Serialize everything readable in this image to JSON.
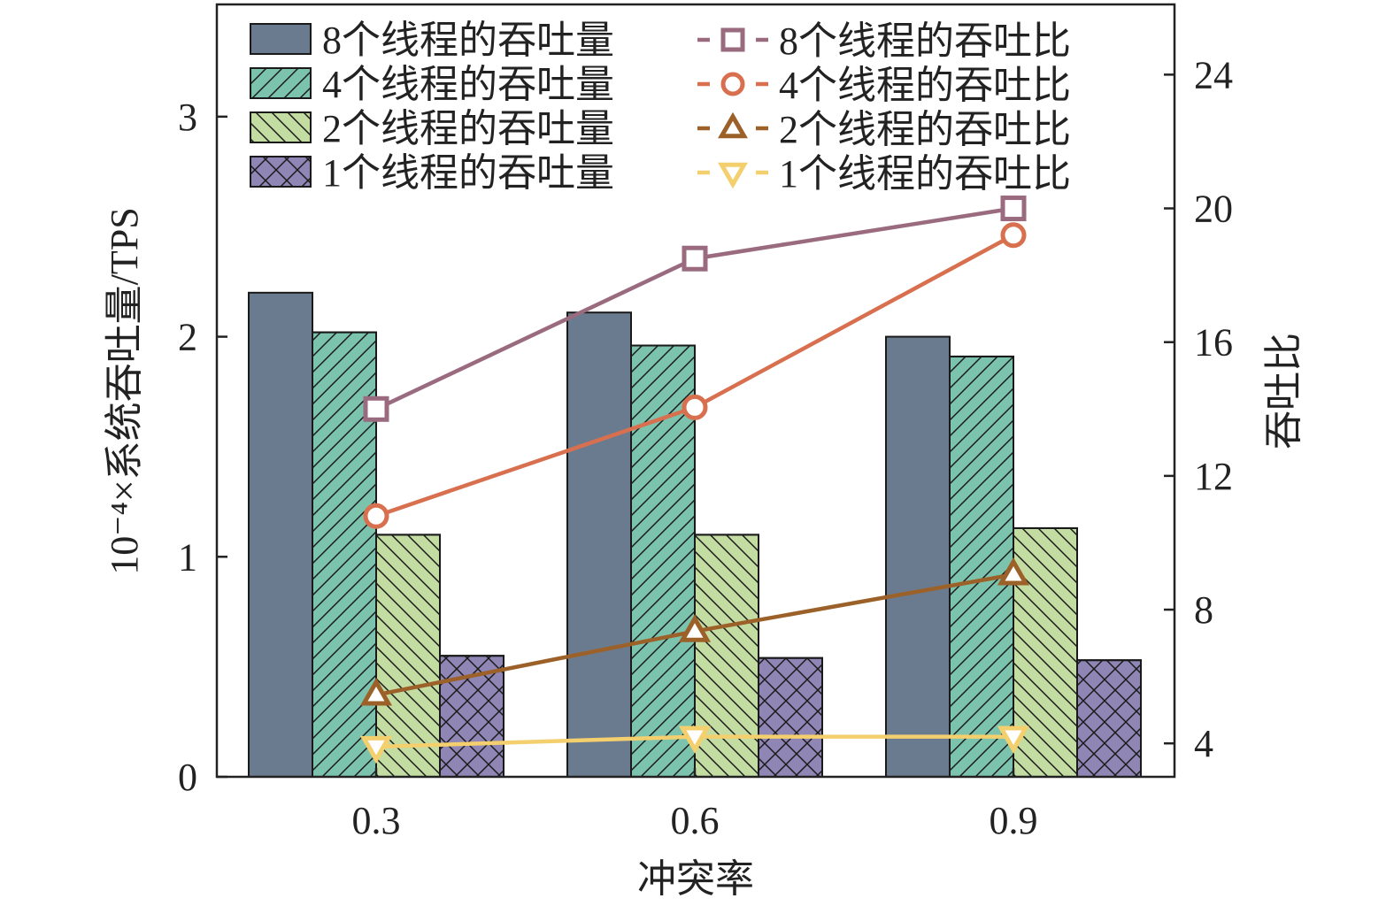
{
  "chart_data": {
    "type": "bar",
    "categories": [
      "0.3",
      "0.6",
      "0.9"
    ],
    "xlabel": "冲突率",
    "ylabel": "10⁻⁴×系统吞吐量/TPS",
    "y2label": "吞吐比",
    "ylim": [
      0,
      3.51
    ],
    "y2lim": [
      3.0,
      26.1
    ],
    "yticks": [
      "0",
      "1",
      "2",
      "3"
    ],
    "y2ticks": [
      "4",
      "8",
      "12",
      "16",
      "20",
      "24"
    ],
    "legend_position": "top",
    "series": [
      {
        "name": "8个线程的吞吐量",
        "kind": "bar",
        "axis": "left",
        "color": "#6b7b8f",
        "pattern": "solid",
        "values": [
          2.2,
          2.11,
          2.0
        ]
      },
      {
        "name": "4个线程的吞吐量",
        "kind": "bar",
        "axis": "left",
        "color": "#7cc3ae",
        "pattern": "slash",
        "values": [
          2.02,
          1.96,
          1.91
        ]
      },
      {
        "name": "2个线程的吞吐量",
        "kind": "bar",
        "axis": "left",
        "color": "#c3dca2",
        "pattern": "backslash",
        "values": [
          1.1,
          1.1,
          1.13
        ]
      },
      {
        "name": "1个线程的吞吐量",
        "kind": "bar",
        "axis": "left",
        "color": "#8f86b5",
        "pattern": "cross",
        "values": [
          0.55,
          0.54,
          0.53
        ]
      },
      {
        "name": "8个线程的吞吐比",
        "kind": "line",
        "axis": "right",
        "color": "#9a6b7e",
        "marker": "square",
        "values": [
          14.0,
          18.5,
          20.0
        ]
      },
      {
        "name": "4个线程的吞吐比",
        "kind": "line",
        "axis": "right",
        "color": "#d8704f",
        "marker": "circle",
        "values": [
          10.8,
          14.05,
          19.2
        ]
      },
      {
        "name": "2个线程的吞吐比",
        "kind": "line",
        "axis": "right",
        "color": "#9c6128",
        "marker": "triangle-up",
        "values": [
          5.45,
          7.35,
          9.05
        ]
      },
      {
        "name": "1个线程的吞吐比",
        "kind": "line",
        "axis": "right",
        "color": "#f4cf6e",
        "marker": "triangle-down",
        "values": [
          3.9,
          4.2,
          4.2
        ]
      }
    ]
  }
}
